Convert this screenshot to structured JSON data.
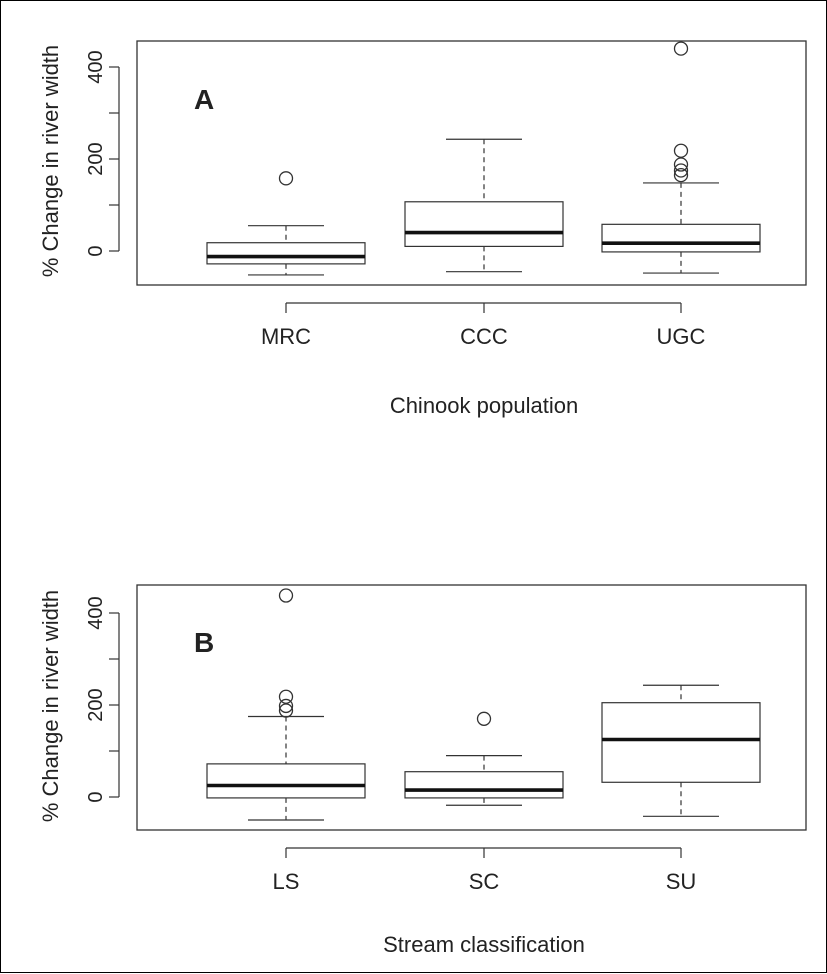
{
  "chart_data": [
    {
      "type": "boxplot",
      "panel_label": "A",
      "xlabel": "Chinook population",
      "ylabel": "% Change in river width",
      "ylim": [
        -75,
        460
      ],
      "yticks": [
        0,
        100,
        200,
        300,
        400
      ],
      "ytick_labels": [
        "0",
        "200",
        "400"
      ],
      "categories": [
        "MRC",
        "CCC",
        "UGC"
      ],
      "boxes": [
        {
          "category": "MRC",
          "whisker_low": -52,
          "q1": -28,
          "median": -12,
          "q3": 18,
          "whisker_high": 55,
          "outliers": [
            158
          ]
        },
        {
          "category": "CCC",
          "whisker_low": -45,
          "q1": 10,
          "median": 40,
          "q3": 107,
          "whisker_high": 243,
          "outliers": []
        },
        {
          "category": "UGC",
          "whisker_low": -48,
          "q1": -2,
          "median": 17,
          "q3": 58,
          "whisker_high": 148,
          "outliers": [
            165,
            175,
            188,
            218,
            440
          ]
        }
      ]
    },
    {
      "type": "boxplot",
      "panel_label": "B",
      "xlabel": "Stream classification",
      "ylabel": "% Change in river width",
      "ylim": [
        -75,
        460
      ],
      "yticks": [
        0,
        100,
        200,
        300,
        400
      ],
      "ytick_labels": [
        "0",
        "200",
        "400"
      ],
      "categories": [
        "LS",
        "SC",
        "SU"
      ],
      "boxes": [
        {
          "category": "LS",
          "whisker_low": -50,
          "q1": -2,
          "median": 25,
          "q3": 72,
          "whisker_high": 175,
          "outliers": [
            188,
            198,
            218,
            438
          ]
        },
        {
          "category": "SC",
          "whisker_low": -18,
          "q1": -2,
          "median": 15,
          "q3": 55,
          "whisker_high": 90,
          "outliers": [
            170
          ]
        },
        {
          "category": "SU",
          "whisker_low": -42,
          "q1": 32,
          "median": 125,
          "q3": 205,
          "whisker_high": 243,
          "outliers": []
        }
      ]
    }
  ]
}
